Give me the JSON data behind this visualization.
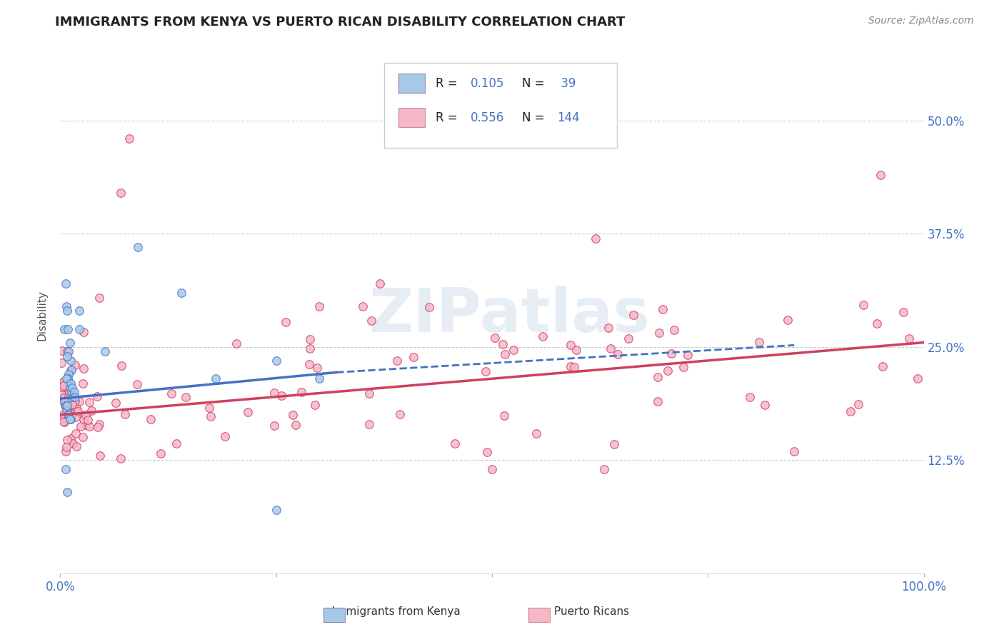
{
  "title": "IMMIGRANTS FROM KENYA VS PUERTO RICAN DISABILITY CORRELATION CHART",
  "source": "Source: ZipAtlas.com",
  "ylabel": "Disability",
  "ytick_labels": [
    "12.5%",
    "25.0%",
    "37.5%",
    "50.0%"
  ],
  "ytick_values": [
    0.125,
    0.25,
    0.375,
    0.5
  ],
  "xlim": [
    0.0,
    1.0
  ],
  "ylim": [
    0.0,
    0.55
  ],
  "legend_r1": "R = 0.105",
  "legend_n1": "N =  39",
  "legend_r2": "R = 0.556",
  "legend_n2": "N = 144",
  "color_blue": "#a8c8e8",
  "color_pink": "#f4b8c8",
  "line_color_blue": "#4472c4",
  "line_color_pink": "#d04060",
  "watermark": "ZIPatlas",
  "background_color": "#ffffff",
  "title_color": "#222222",
  "source_color": "#888888",
  "axis_label_color": "#4472c4",
  "legend_text_color_label": "#222222",
  "legend_text_color_value": "#4472c4",
  "grid_color": "#cccccc",
  "bottom_legend_items": [
    "Immigrants from Kenya",
    "Puerto Ricans"
  ]
}
